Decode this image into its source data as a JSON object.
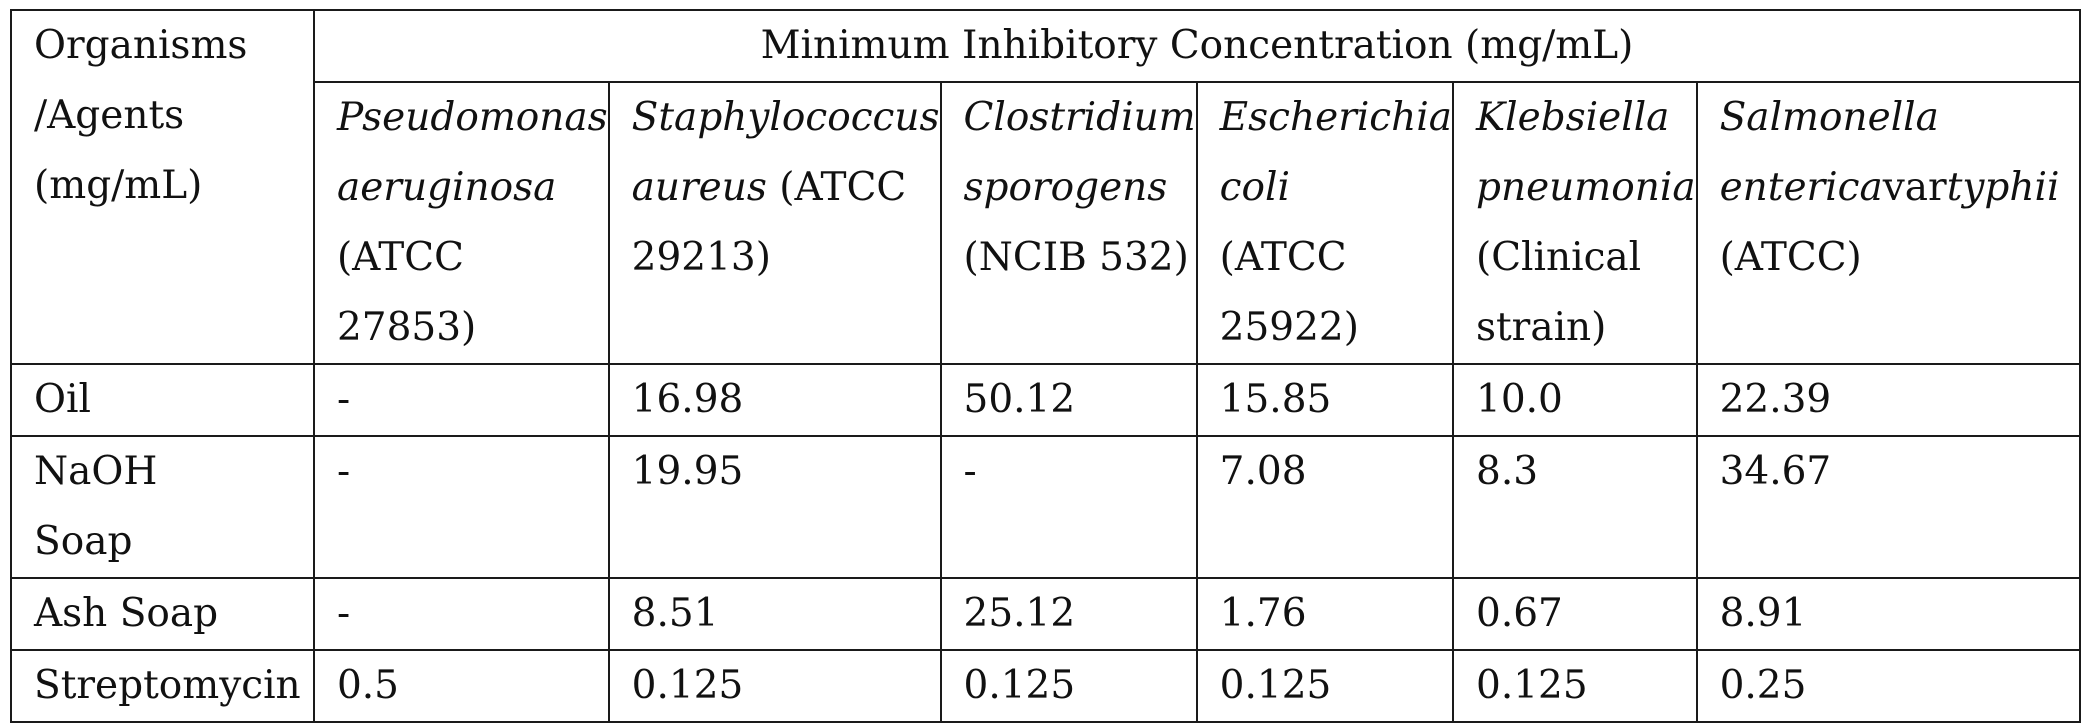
{
  "table": {
    "corner_header": [
      "Organisms",
      "/Agents",
      "(mg/mL)"
    ],
    "title": "Minimum Inhibitory Concentration (mg/mL)",
    "organisms": [
      {
        "species_lines": [
          "Pseudomonas",
          "aeruginosa"
        ],
        "strain_lines": [
          "(ATCC",
          "27853)"
        ]
      },
      {
        "species_lines": [
          "Staphylococcus",
          "aureus"
        ],
        "strain_lines": [
          " (ATCC",
          "29213)"
        ]
      },
      {
        "species_lines": [
          "Clostridium",
          "sporogens"
        ],
        "strain_lines": [
          "(NCIB 532)"
        ]
      },
      {
        "species_lines": [
          "Escherichia",
          "coli"
        ],
        "strain_lines": [
          "(ATCC",
          "25922)"
        ]
      },
      {
        "species_lines": [
          "Klebsiella",
          "pneumonia"
        ],
        "strain_lines": [
          "(Clinical",
          "strain)"
        ]
      },
      {
        "species_lines": [
          "Salmonella",
          "enterica"
        ],
        "var_text": "var",
        "typhi_text": "typhii",
        "strain_lines": [
          "(ATCC)"
        ]
      }
    ],
    "rows": [
      {
        "agent": "Oil",
        "values": [
          "-",
          "16.98",
          "50.12",
          "15.85",
          "10.0",
          "22.39"
        ]
      },
      {
        "agent_lines": [
          "NaOH",
          "Soap"
        ],
        "values": [
          "-",
          "19.95",
          "-",
          "7.08",
          "8.3",
          "34.67"
        ]
      },
      {
        "agent": "Ash Soap",
        "values": [
          "-",
          "8.51",
          "25.12",
          "1.76",
          "0.67",
          "8.91"
        ]
      },
      {
        "agent": "Streptomycin",
        "values": [
          "0.5",
          "0.125",
          "0.125",
          "0.125",
          "0.125",
          "0.25"
        ]
      }
    ]
  }
}
